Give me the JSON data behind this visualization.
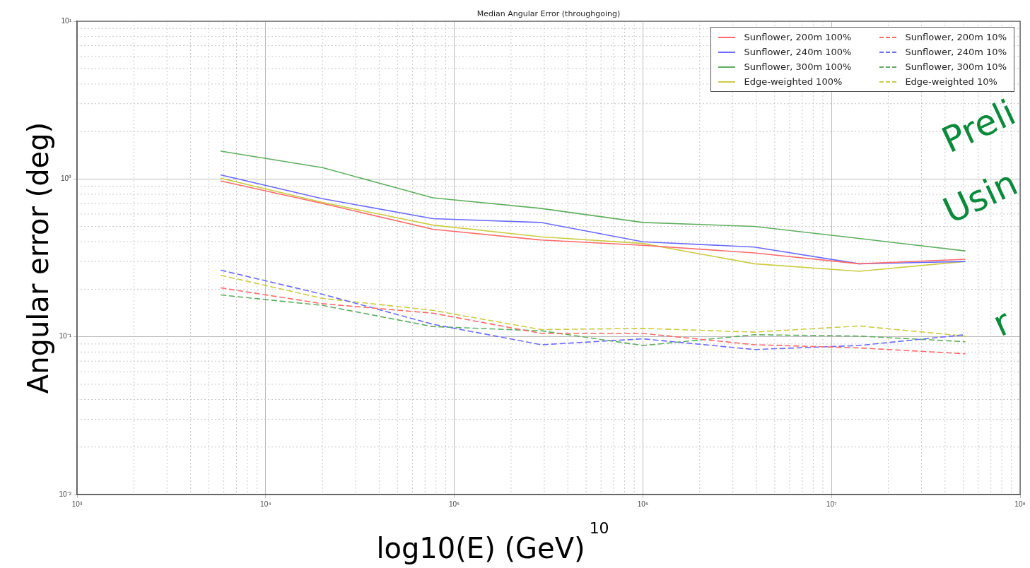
{
  "chart_data": {
    "type": "line",
    "title": "Median Angular Error (throughgoing)",
    "xlabel": "log10(E) (GeV)",
    "ylabel": "Angular error (deg)",
    "log": "xy",
    "grid": true,
    "legend": "top right",
    "line_style": "solid",
    "marker": "none",
    "xlim": [
      1000,
      100000000
    ],
    "ylim": [
      0.01,
      10
    ],
    "xticks": [
      {
        "value": 1000,
        "label": "10³"
      },
      {
        "value": 10000,
        "label": "10⁴"
      },
      {
        "value": 100000,
        "label": "10⁵"
      },
      {
        "value": 1000000,
        "label": "10⁶"
      },
      {
        "value": 10000000,
        "label": "10⁷"
      },
      {
        "value": 100000000,
        "label": "10⁸"
      }
    ],
    "yticks": [
      {
        "value": 0.01,
        "label": "10⁻²"
      },
      {
        "value": 0.1,
        "label": "10⁻¹"
      },
      {
        "value": 1,
        "label": "10⁰"
      },
      {
        "value": 10,
        "label": "10¹"
      }
    ],
    "x": [
      5800,
      20000,
      77000,
      290000,
      1000000,
      3900000,
      14000000,
      51000000
    ],
    "series": [
      {
        "name": "Sunflower, 200m 100%",
        "color": "#ff6b6b",
        "values": [
          0.97,
          0.7,
          0.48,
          0.41,
          0.38,
          0.34,
          0.29,
          0.31
        ]
      },
      {
        "name": "Sunflower, 240m 100%",
        "color": "#6b6bff",
        "values": [
          1.06,
          0.75,
          0.56,
          0.53,
          0.4,
          0.37,
          0.29,
          0.3
        ]
      },
      {
        "name": "Sunflower, 300m 100%",
        "color": "#5fae5f",
        "values": [
          1.5,
          1.18,
          0.76,
          0.65,
          0.53,
          0.5,
          0.42,
          0.35
        ]
      },
      {
        "name": "Edge-weighted 100%",
        "color": "#cccc44",
        "values": [
          1.01,
          0.71,
          0.51,
          0.43,
          0.39,
          0.29,
          0.26,
          0.3
        ]
      },
      {
        "name": "Sunflower, 200m 10%",
        "color": "#ff6b6b",
        "line_style": "dashed",
        "values": [
          0.204,
          0.162,
          0.141,
          0.105,
          0.105,
          0.089,
          0.085,
          0.078
        ]
      },
      {
        "name": "Sunflower, 240m 10%",
        "color": "#6b6bff",
        "line_style": "dashed",
        "values": [
          0.264,
          0.186,
          0.12,
          0.089,
          0.097,
          0.083,
          0.088,
          0.103
        ]
      },
      {
        "name": "Sunflower, 300m 10%",
        "color": "#5fae5f",
        "line_style": "dashed",
        "values": [
          0.184,
          0.158,
          0.116,
          0.109,
          0.088,
          0.103,
          0.101,
          0.093
        ]
      },
      {
        "name": "Edge-weighted 10%",
        "color": "#cccc44",
        "line_style": "dashed",
        "values": [
          0.245,
          0.175,
          0.147,
          0.111,
          0.113,
          0.107,
          0.117,
          0.101
        ]
      }
    ],
    "annotations": [
      "Preli",
      "Usin",
      "r",
      "10"
    ]
  }
}
